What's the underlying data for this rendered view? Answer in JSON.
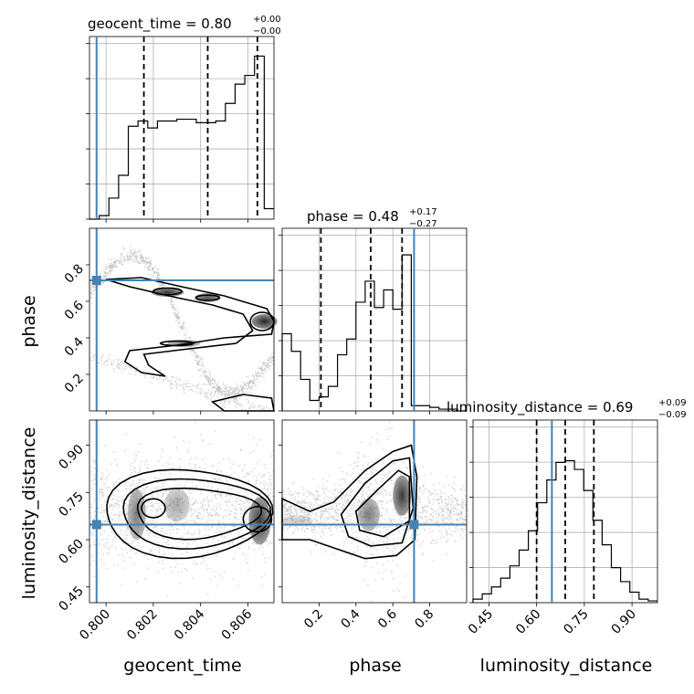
{
  "colors": {
    "truth": "#4682b4",
    "hist": "#000000",
    "grid": "#b0b0b0",
    "scatter": "#bdbdbd"
  },
  "titles": {
    "geocent_time": {
      "name": "geocent_time",
      "value": "0.80",
      "plus": "+0.00",
      "minus": "−0.00"
    },
    "phase": {
      "name": "phase",
      "value": "0.48",
      "plus": "+0.17",
      "minus": "−0.27"
    },
    "luminosity_distance": {
      "name": "luminosity_distance",
      "value": "0.69",
      "plus": "+0.09",
      "minus": "−0.09"
    }
  },
  "chart_data": {
    "type": "corner",
    "parameters": [
      "geocent_time",
      "phase",
      "luminosity_distance"
    ],
    "axis_labels": {
      "geocent_time": "geocent_time",
      "phase": "phase",
      "luminosity_distance": "luminosity_distance"
    },
    "ranges": {
      "geocent_time": [
        0.7993,
        0.8071
      ],
      "phase": [
        0.0,
        1.0
      ],
      "luminosity_distance": [
        0.4,
        0.98
      ]
    },
    "ticks": {
      "geocent_time": [
        0.8,
        0.802,
        0.804,
        0.806
      ],
      "phase": [
        0.2,
        0.4,
        0.6,
        0.8
      ],
      "luminosity_distance": [
        0.45,
        0.6,
        0.75,
        0.9
      ]
    },
    "tick_labels": {
      "geocent_time": [
        "0.800",
        "0.802",
        "0.804",
        "0.806"
      ],
      "phase": [
        "0.2",
        "0.4",
        "0.6",
        "0.8"
      ],
      "luminosity_distance": [
        "0.45",
        "0.60",
        "0.75",
        "0.90"
      ]
    },
    "truths": {
      "geocent_time": 0.7996,
      "phase": 0.715,
      "luminosity_distance": 0.648
    },
    "quantiles": {
      "geocent_time": [
        0.8016,
        0.8043,
        0.8064
      ],
      "phase": [
        0.21,
        0.48,
        0.65
      ],
      "luminosity_distance": [
        0.6,
        0.69,
        0.78
      ]
    },
    "histograms": {
      "geocent_time": [
        0.0,
        0.02,
        0.12,
        0.25,
        0.53,
        0.56,
        0.52,
        0.56,
        0.56,
        0.57,
        0.57,
        0.55,
        0.55,
        0.56,
        0.66,
        0.77,
        0.82,
        0.93,
        0.06
      ],
      "phase": [
        0.44,
        0.34,
        0.18,
        0.06,
        0.08,
        0.14,
        0.32,
        0.41,
        0.62,
        0.74,
        0.59,
        0.69,
        0.58,
        0.89,
        0.03,
        0.03,
        0.02,
        0.01,
        0.01,
        0.0
      ],
      "luminosity_distance": [
        0.02,
        0.05,
        0.09,
        0.14,
        0.21,
        0.3,
        0.41,
        0.57,
        0.7,
        0.8,
        0.81,
        0.76,
        0.64,
        0.47,
        0.33,
        0.2,
        0.12,
        0.06,
        0.02,
        0.01
      ]
    },
    "hist_ylims": {
      "geocent_time": [
        0,
        1.0
      ],
      "phase": [
        0,
        1.0
      ],
      "luminosity_distance": [
        0,
        1.0
      ]
    },
    "grid": true
  }
}
